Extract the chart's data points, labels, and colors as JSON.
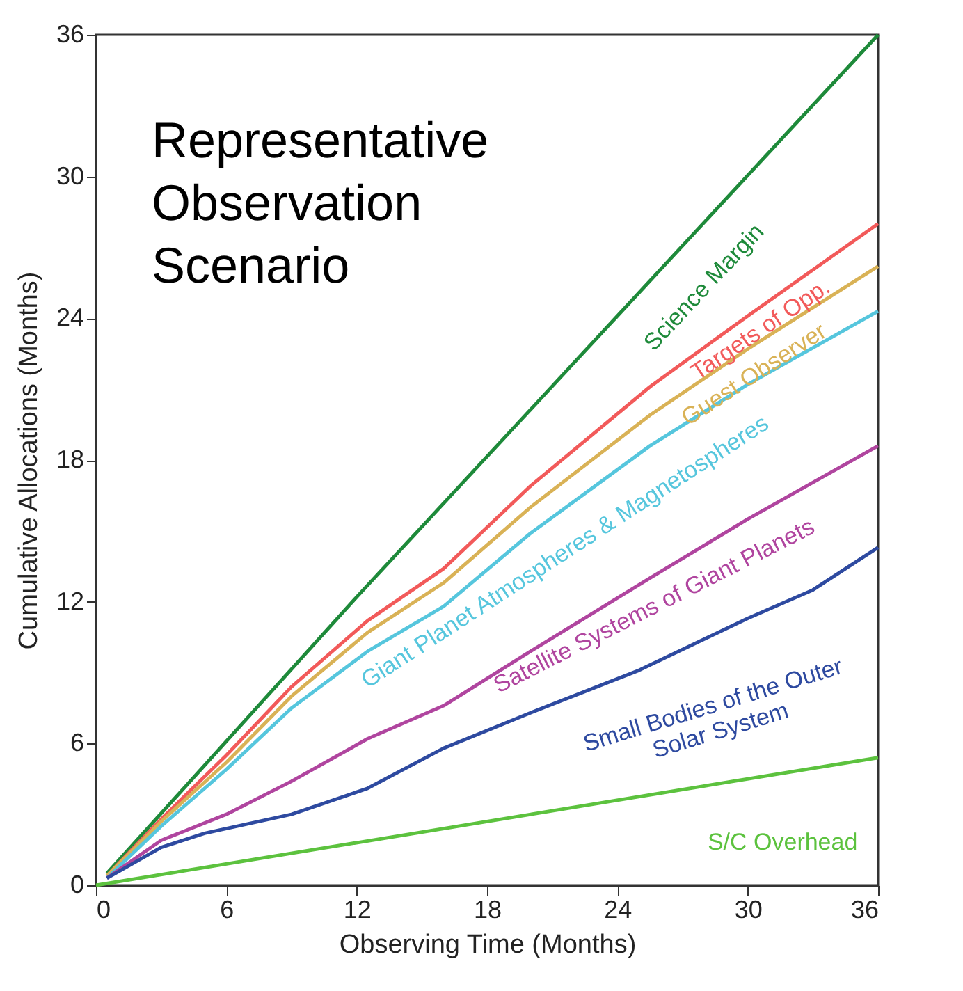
{
  "chart_data": {
    "type": "line",
    "title": "Representative Observation Scenario",
    "xlabel": "Observing Time (Months)",
    "ylabel": "Cumulative Allocations (Months)",
    "xlim": [
      0,
      36
    ],
    "ylim": [
      0,
      36
    ],
    "xticks": [
      0,
      6,
      12,
      18,
      24,
      30,
      36
    ],
    "yticks": [
      0,
      6,
      12,
      18,
      24,
      30,
      36
    ],
    "grid": false,
    "legend": false,
    "marker": "none",
    "line_style": "solid",
    "series": [
      {
        "name": "Science Margin",
        "color": "#1e8a3a",
        "x": [
          0.5,
          12,
          24,
          36
        ],
        "values": [
          0.5,
          12.2,
          24.1,
          36
        ]
      },
      {
        "name": "Targets of Opp.",
        "color": "#f25a5a",
        "x": [
          0.5,
          3,
          6,
          9,
          12.5,
          16,
          20,
          25.5,
          30,
          36
        ],
        "values": [
          0.4,
          2.8,
          5.5,
          8.4,
          11.2,
          13.4,
          16.9,
          21.1,
          24.1,
          28
        ]
      },
      {
        "name": "Guest Observer",
        "color": "#d9b256",
        "x": [
          0.5,
          3,
          6,
          9,
          12.5,
          16,
          20,
          25.5,
          30,
          36
        ],
        "values": [
          0.4,
          2.7,
          5.2,
          8,
          10.7,
          12.8,
          16,
          19.9,
          22.7,
          26.2
        ]
      },
      {
        "name": "Giant Planet Atmospheres & Magnetospheres",
        "color": "#56c6dd",
        "x": [
          0.5,
          3,
          6,
          9,
          12.5,
          16,
          20,
          25.5,
          30,
          36
        ],
        "values": [
          0.3,
          2.5,
          4.9,
          7.5,
          9.9,
          11.8,
          14.9,
          18.6,
          21.2,
          24.3
        ]
      },
      {
        "name": "Satellite Systems of Giant Planets",
        "color": "#b0459f",
        "x": [
          0.5,
          3,
          6,
          9,
          12.5,
          16,
          20,
          25.5,
          30,
          36
        ],
        "values": [
          0.3,
          1.9,
          3.0,
          4.4,
          6.2,
          7.6,
          9.9,
          13,
          15.5,
          18.6
        ]
      },
      {
        "name": "Small Bodies of the Outer\nSolar System",
        "color": "#2e4aa0",
        "x": [
          0.5,
          3,
          5,
          9,
          12.5,
          16,
          20,
          25,
          30,
          33,
          36
        ],
        "values": [
          0.3,
          1.6,
          2.2,
          3,
          4.1,
          5.8,
          7.3,
          9.1,
          11.3,
          12.5,
          14.3
        ]
      },
      {
        "name": "S/C Overhead",
        "color": "#5cc23e",
        "x": [
          0,
          36
        ],
        "values": [
          0,
          5.4
        ]
      }
    ]
  }
}
